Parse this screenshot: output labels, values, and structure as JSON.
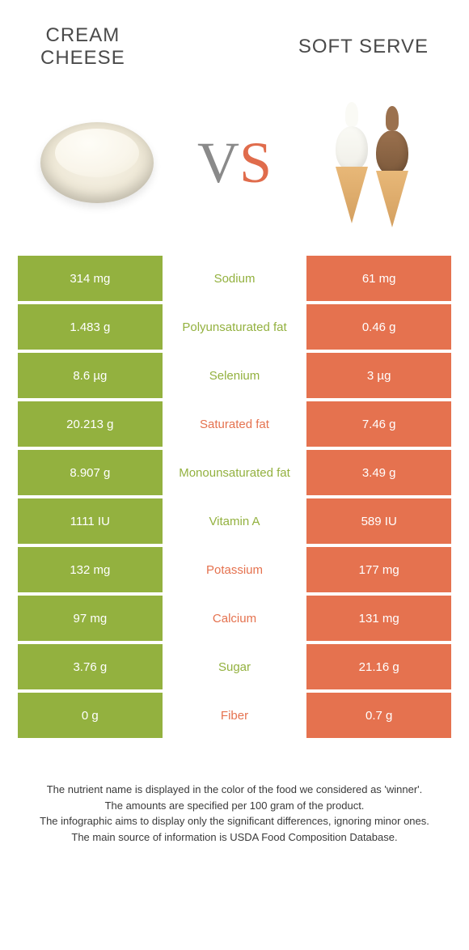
{
  "colors": {
    "green": "#93b13f",
    "orange": "#e5724f",
    "orange_alt": "#e6805f"
  },
  "header": {
    "left_line1": "Cream",
    "left_line2": "cheese",
    "right": "Soft serve",
    "vs_v": "V",
    "vs_s": "S"
  },
  "table": {
    "rows": [
      {
        "left": "314 mg",
        "label": "Sodium",
        "right": "61 mg",
        "winner": "left"
      },
      {
        "left": "1.483 g",
        "label": "Polyunsaturated fat",
        "right": "0.46 g",
        "winner": "left"
      },
      {
        "left": "8.6 µg",
        "label": "Selenium",
        "right": "3 µg",
        "winner": "left"
      },
      {
        "left": "20.213 g",
        "label": "Saturated fat",
        "right": "7.46 g",
        "winner": "right"
      },
      {
        "left": "8.907 g",
        "label": "Monounsaturated fat",
        "right": "3.49 g",
        "winner": "left"
      },
      {
        "left": "1111 IU",
        "label": "Vitamin A",
        "right": "589 IU",
        "winner": "left"
      },
      {
        "left": "132 mg",
        "label": "Potassium",
        "right": "177 mg",
        "winner": "right"
      },
      {
        "left": "97 mg",
        "label": "Calcium",
        "right": "131 mg",
        "winner": "right"
      },
      {
        "left": "3.76 g",
        "label": "Sugar",
        "right": "21.16 g",
        "winner": "left"
      },
      {
        "left": "0 g",
        "label": "Fiber",
        "right": "0.7 g",
        "winner": "right"
      }
    ]
  },
  "footer": {
    "line1": "The nutrient name is displayed in the color of the food we considered as 'winner'.",
    "line2": "The amounts are specified per 100 gram of the product.",
    "line3": "The infographic aims to display only the significant differences, ignoring minor ones.",
    "line4": "The main source of information is USDA Food Composition Database."
  }
}
